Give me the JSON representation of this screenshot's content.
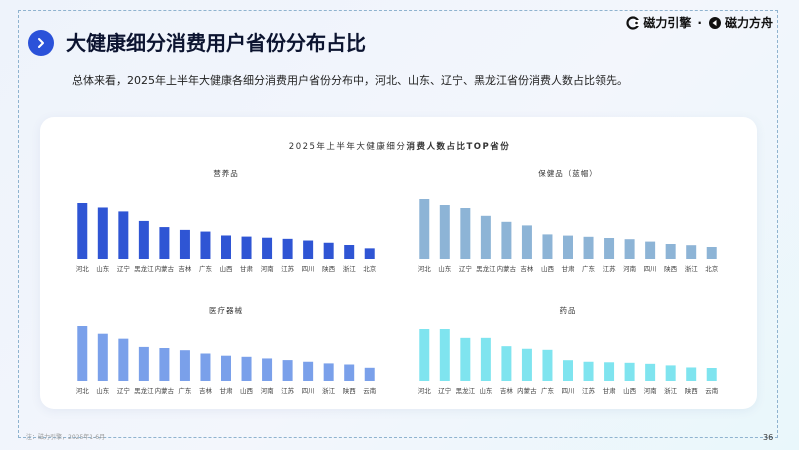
{
  "header": {
    "title": "大健康细分消费用户省份分布占比",
    "subtitle": "总体来看，2025年上半年大健康各细分消费用户省份分布中，河北、山东、辽宁、黑龙江省份消费人数占比领先。",
    "logo_left": "磁力引擎",
    "logo_sep": "·",
    "logo_right": "磁力方舟",
    "accent": "#2b52d9"
  },
  "chart_header": {
    "title_plain": "2025年上半年大健康细分",
    "title_bold": "消费人数占比TOP省份"
  },
  "footer": {
    "source": "注：磁力引擎，2025年1-6月",
    "page": "36"
  },
  "chart_data": [
    {
      "type": "bar",
      "title": "营养品",
      "color": "#2f55d4",
      "categories": [
        "河北",
        "山东",
        "辽宁",
        "黑龙江",
        "内蒙古",
        "吉林",
        "广东",
        "山西",
        "甘肃",
        "河南",
        "江苏",
        "四川",
        "陕西",
        "浙江",
        "北京"
      ],
      "values": [
        100,
        92,
        85,
        68,
        57,
        52,
        49,
        42,
        40,
        38,
        36,
        33,
        29,
        25,
        19
      ],
      "ylim": [
        0,
        100
      ]
    },
    {
      "type": "bar",
      "title": "保健品（蓝帽）",
      "color": "#8db4d6",
      "categories": [
        "河北",
        "山东",
        "辽宁",
        "黑龙江",
        "内蒙古",
        "吉林",
        "山西",
        "甘肃",
        "广东",
        "江苏",
        "河南",
        "四川",
        "陕西",
        "浙江",
        "北京"
      ],
      "values": [
        100,
        90,
        85,
        72,
        62,
        56,
        41,
        39,
        37,
        35,
        33,
        29,
        25,
        23,
        20
      ],
      "ylim": [
        0,
        100
      ]
    },
    {
      "type": "bar",
      "title": "医疗器械",
      "color": "#7aa0ea",
      "categories": [
        "河北",
        "山东",
        "辽宁",
        "黑龙江",
        "内蒙古",
        "广东",
        "吉林",
        "甘肃",
        "山西",
        "河南",
        "江苏",
        "四川",
        "浙江",
        "陕西",
        "云南"
      ],
      "values": [
        100,
        86,
        77,
        62,
        60,
        56,
        50,
        46,
        44,
        41,
        38,
        35,
        32,
        30,
        24
      ],
      "ylim": [
        0,
        100
      ]
    },
    {
      "type": "bar",
      "title": "药品",
      "color": "#7fe4ef",
      "categories": [
        "河北",
        "辽宁",
        "黑龙江",
        "山东",
        "吉林",
        "内蒙古",
        "广东",
        "四川",
        "江苏",
        "甘肃",
        "山西",
        "河南",
        "浙江",
        "陕西",
        "云南"
      ],
      "values": [
        100,
        100,
        83,
        83,
        67,
        62,
        60,
        40,
        37,
        36,
        35,
        33,
        30,
        26,
        25
      ],
      "ylim": [
        0,
        100
      ]
    }
  ]
}
